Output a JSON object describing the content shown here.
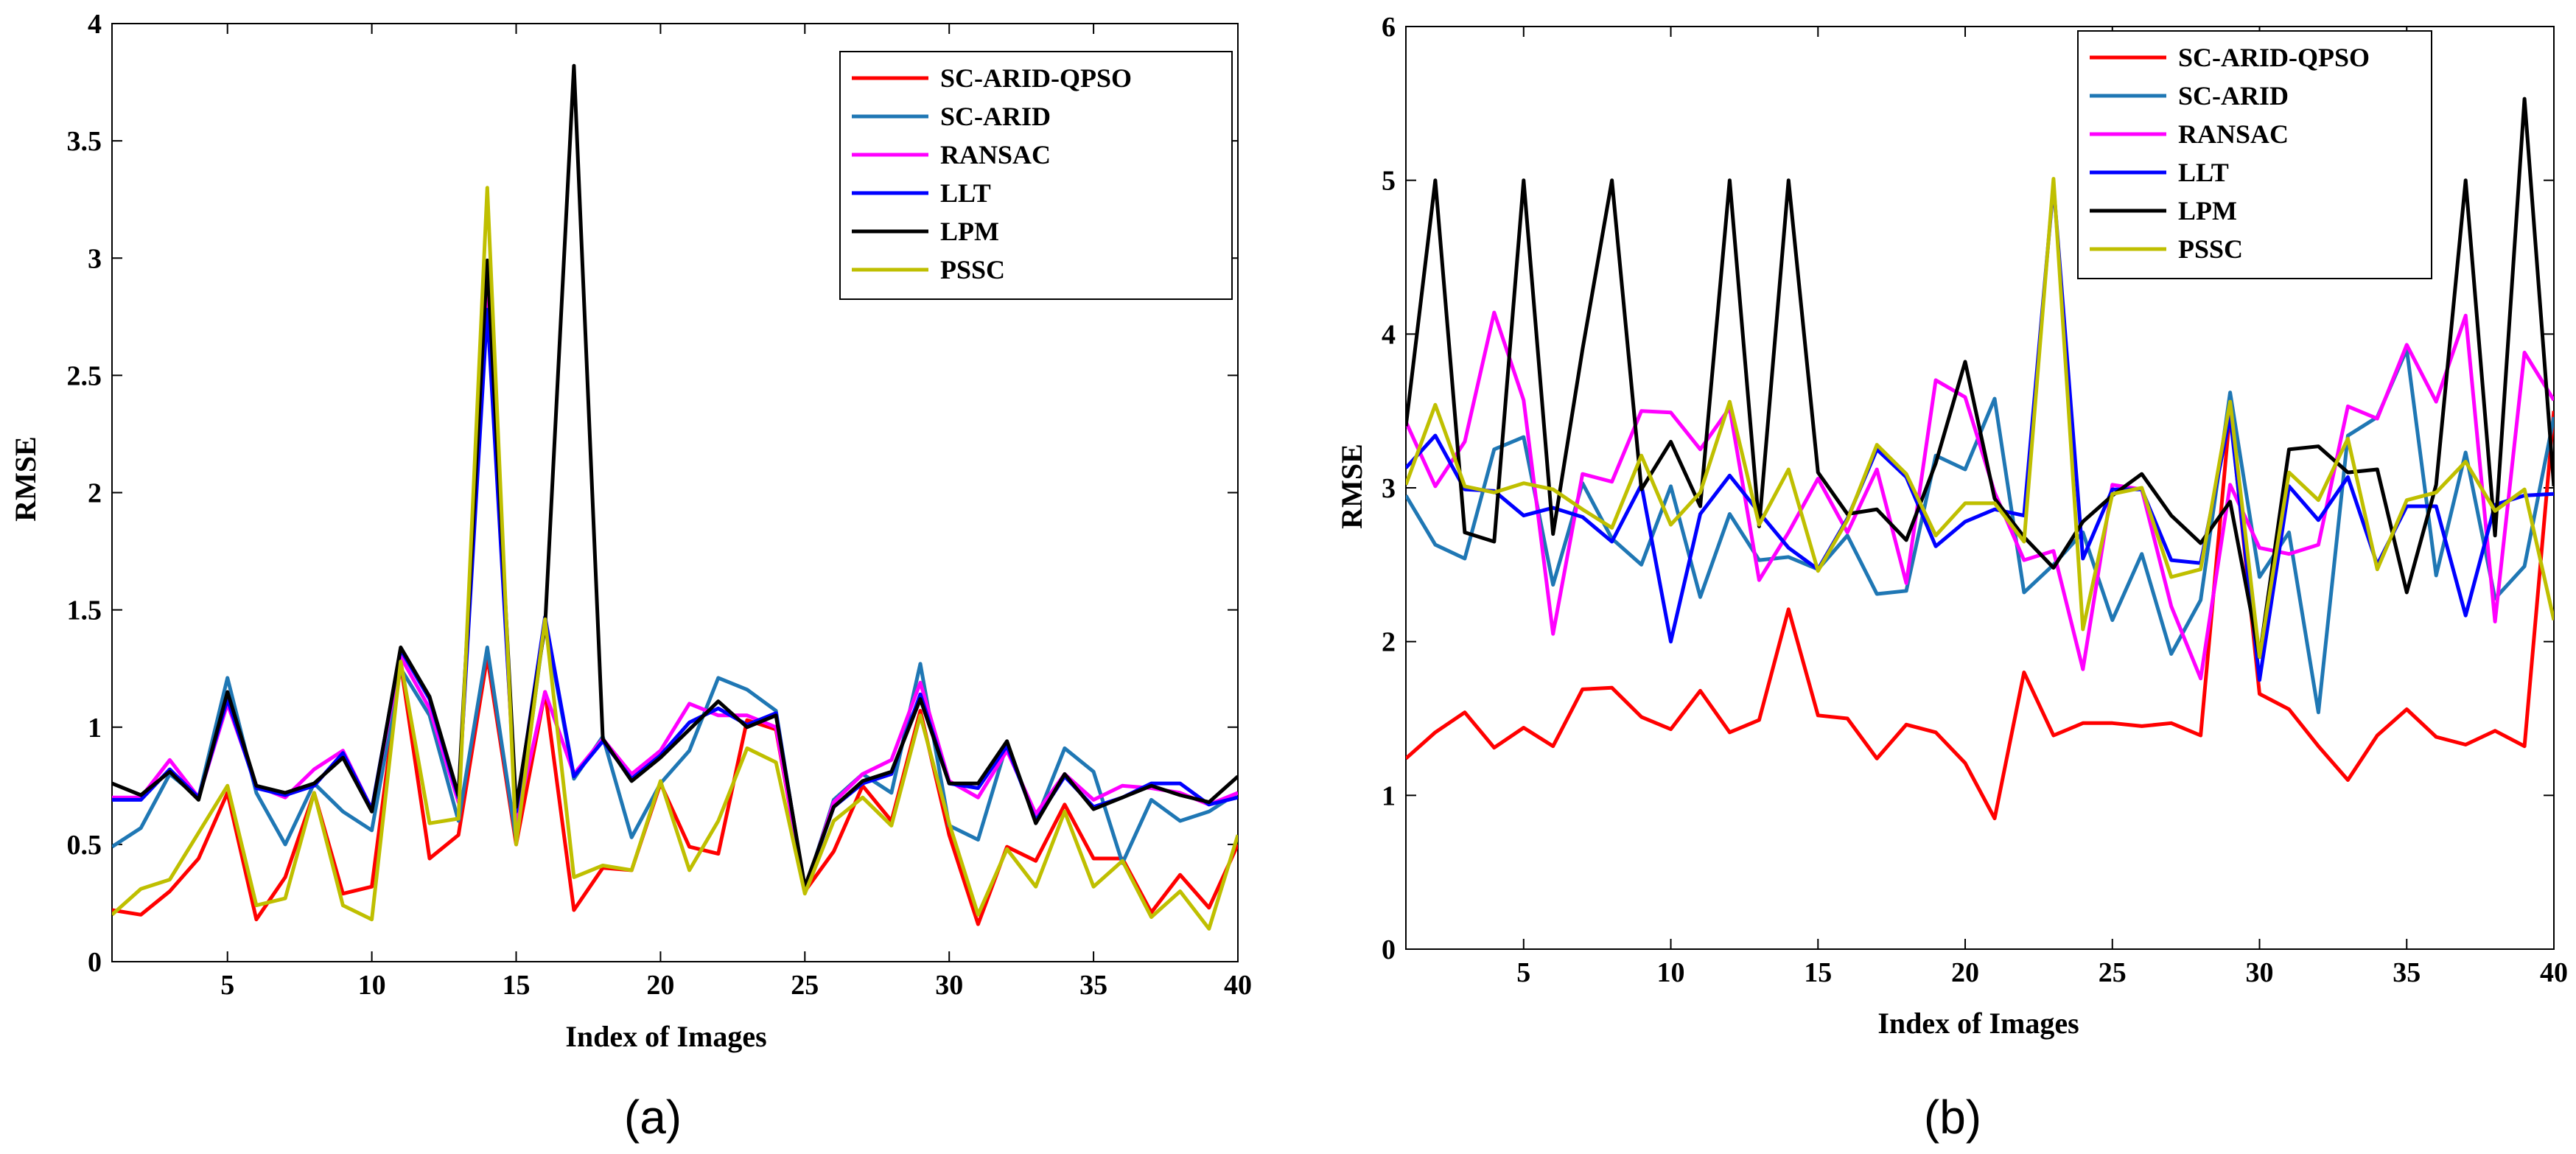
{
  "chart_data": [
    {
      "type": "line",
      "panel_label": "(a)",
      "xlabel": "Index of Images",
      "ylabel": "RMSE",
      "xlim": [
        1,
        40
      ],
      "ylim": [
        0,
        4
      ],
      "xticks": [
        5,
        10,
        15,
        20,
        25,
        30,
        35,
        40
      ],
      "yticks": [
        0,
        0.5,
        1,
        1.5,
        2,
        2.5,
        3,
        3.5,
        4
      ],
      "ytick_labels": [
        "0",
        "0.5",
        "1",
        "1.5",
        "2",
        "2.5",
        "3",
        "3.5",
        "4"
      ],
      "legend_position": "top-right",
      "x": [
        1,
        2,
        3,
        4,
        5,
        6,
        7,
        8,
        9,
        10,
        11,
        12,
        13,
        14,
        15,
        16,
        17,
        18,
        19,
        20,
        21,
        22,
        23,
        24,
        25,
        26,
        27,
        28,
        29,
        30,
        31,
        32,
        33,
        34,
        35,
        36,
        37,
        38,
        39,
        40
      ],
      "series": [
        {
          "name": "SC-ARID-QPSO",
          "color": "#ff0000",
          "values": [
            0.22,
            0.2,
            0.3,
            0.44,
            0.72,
            0.18,
            0.36,
            0.72,
            0.29,
            0.32,
            1.27,
            0.44,
            0.54,
            1.3,
            0.5,
            1.15,
            0.22,
            0.4,
            0.39,
            0.76,
            0.49,
            0.46,
            1.03,
            0.99,
            0.3,
            0.47,
            0.75,
            0.6,
            1.07,
            0.54,
            0.16,
            0.49,
            0.43,
            0.67,
            0.44,
            0.44,
            0.21,
            0.37,
            0.23,
            0.5
          ]
        },
        {
          "name": "SC-ARID",
          "color": "#1f77b4",
          "values": [
            0.49,
            0.57,
            0.8,
            0.7,
            1.21,
            0.72,
            0.5,
            0.76,
            0.64,
            0.56,
            1.25,
            1.05,
            0.6,
            1.34,
            0.52,
            1.45,
            0.78,
            0.96,
            0.53,
            0.76,
            0.9,
            1.21,
            1.16,
            1.07,
            0.3,
            0.69,
            0.8,
            0.72,
            1.27,
            0.58,
            0.52,
            0.93,
            0.6,
            0.91,
            0.81,
            0.42,
            0.69,
            0.6,
            0.64,
            0.72
          ]
        },
        {
          "name": "RANSAC",
          "color": "#ff00ff",
          "values": [
            0.7,
            0.7,
            0.86,
            0.7,
            1.1,
            0.75,
            0.7,
            0.82,
            0.9,
            0.65,
            1.3,
            1.08,
            0.68,
            2.9,
            0.6,
            1.15,
            0.8,
            0.95,
            0.8,
            0.9,
            1.1,
            1.05,
            1.05,
            1.0,
            0.3,
            0.68,
            0.8,
            0.86,
            1.19,
            0.77,
            0.7,
            0.9,
            0.63,
            0.8,
            0.69,
            0.75,
            0.74,
            0.72,
            0.67,
            0.72
          ]
        },
        {
          "name": "LLT",
          "color": "#0000ff",
          "values": [
            0.69,
            0.69,
            0.82,
            0.7,
            1.12,
            0.74,
            0.71,
            0.75,
            0.89,
            0.65,
            1.33,
            1.12,
            0.7,
            2.78,
            0.64,
            1.47,
            0.79,
            0.94,
            0.78,
            0.88,
            1.02,
            1.08,
            1.01,
            1.06,
            0.31,
            0.66,
            0.76,
            0.8,
            1.14,
            0.76,
            0.74,
            0.92,
            0.6,
            0.79,
            0.66,
            0.7,
            0.76,
            0.76,
            0.67,
            0.7
          ]
        },
        {
          "name": "LPM",
          "color": "#000000",
          "values": [
            0.76,
            0.71,
            0.81,
            0.69,
            1.15,
            0.75,
            0.72,
            0.76,
            0.87,
            0.64,
            1.34,
            1.13,
            0.71,
            2.99,
            0.66,
            1.43,
            3.82,
            0.95,
            0.77,
            0.87,
            0.99,
            1.11,
            1.0,
            1.05,
            0.32,
            0.66,
            0.77,
            0.81,
            1.12,
            0.76,
            0.76,
            0.94,
            0.59,
            0.8,
            0.65,
            0.7,
            0.75,
            0.71,
            0.68,
            0.79
          ]
        },
        {
          "name": "PSSC",
          "color": "#bfbf00",
          "values": [
            0.2,
            0.31,
            0.35,
            0.55,
            0.75,
            0.24,
            0.27,
            0.72,
            0.24,
            0.18,
            1.28,
            0.59,
            0.61,
            3.3,
            0.5,
            1.46,
            0.36,
            0.41,
            0.39,
            0.77,
            0.39,
            0.6,
            0.91,
            0.85,
            0.29,
            0.6,
            0.7,
            0.58,
            1.05,
            0.59,
            0.2,
            0.48,
            0.32,
            0.64,
            0.32,
            0.43,
            0.19,
            0.3,
            0.14,
            0.54
          ]
        }
      ]
    },
    {
      "type": "line",
      "panel_label": "(b)",
      "xlabel": "Index of Images",
      "ylabel": "RMSE",
      "xlim": [
        1,
        40
      ],
      "ylim": [
        0,
        6
      ],
      "xticks": [
        5,
        10,
        15,
        20,
        25,
        30,
        35,
        40
      ],
      "yticks": [
        0,
        1,
        2,
        3,
        4,
        5,
        6
      ],
      "ytick_labels": [
        "0",
        "1",
        "2",
        "3",
        "4",
        "5",
        "6"
      ],
      "legend_position": "top-right",
      "x": [
        1,
        2,
        3,
        4,
        5,
        6,
        7,
        8,
        9,
        10,
        11,
        12,
        13,
        14,
        15,
        16,
        17,
        18,
        19,
        20,
        21,
        22,
        23,
        24,
        25,
        26,
        27,
        28,
        29,
        30,
        31,
        32,
        33,
        34,
        35,
        36,
        37,
        38,
        39,
        40
      ],
      "series": [
        {
          "name": "SC-ARID-QPSO",
          "color": "#ff0000",
          "values": [
            1.24,
            1.41,
            1.54,
            1.31,
            1.44,
            1.32,
            1.69,
            1.7,
            1.51,
            1.43,
            1.68,
            1.41,
            1.49,
            2.21,
            1.52,
            1.5,
            1.24,
            1.46,
            1.41,
            1.21,
            0.85,
            1.8,
            1.39,
            1.47,
            1.47,
            1.45,
            1.47,
            1.39,
            3.5,
            1.66,
            1.56,
            1.32,
            1.1,
            1.39,
            1.56,
            1.38,
            1.33,
            1.42,
            1.32,
            3.5
          ]
        },
        {
          "name": "SC-ARID",
          "color": "#1f77b4",
          "values": [
            2.95,
            2.63,
            2.54,
            3.25,
            3.33,
            2.37,
            3.03,
            2.67,
            2.5,
            3.01,
            2.29,
            2.83,
            2.53,
            2.55,
            2.47,
            2.69,
            2.31,
            2.33,
            3.21,
            3.12,
            3.58,
            2.32,
            2.5,
            2.71,
            2.14,
            2.57,
            1.92,
            2.27,
            3.62,
            2.42,
            2.71,
            1.54,
            3.34,
            3.46,
            3.9,
            2.43,
            3.23,
            2.28,
            2.49,
            3.46
          ]
        },
        {
          "name": "RANSAC",
          "color": "#ff00ff",
          "values": [
            3.43,
            3.01,
            3.3,
            4.14,
            3.57,
            2.05,
            3.09,
            3.04,
            3.5,
            3.49,
            3.25,
            3.52,
            2.4,
            2.71,
            3.06,
            2.71,
            3.12,
            2.38,
            3.7,
            3.59,
            2.97,
            2.53,
            2.59,
            1.82,
            3.02,
            2.99,
            2.23,
            1.76,
            3.02,
            2.61,
            2.57,
            2.63,
            3.53,
            3.45,
            3.93,
            3.56,
            4.12,
            2.13,
            3.88,
            3.57
          ]
        },
        {
          "name": "LLT",
          "color": "#0000ff",
          "values": [
            3.13,
            3.34,
            2.99,
            2.98,
            2.82,
            2.87,
            2.81,
            2.65,
            3.02,
            2.0,
            2.83,
            3.08,
            2.84,
            2.61,
            2.47,
            2.8,
            3.25,
            3.07,
            2.62,
            2.78,
            2.86,
            2.82,
            4.97,
            2.54,
            2.99,
            2.99,
            2.53,
            2.51,
            3.47,
            1.75,
            3.01,
            2.79,
            3.07,
            2.5,
            2.88,
            2.88,
            2.17,
            2.89,
            2.95,
            2.96
          ]
        },
        {
          "name": "LPM",
          "color": "#000000",
          "values": [
            3.4,
            5.0,
            2.71,
            2.65,
            5.0,
            2.7,
            3.9,
            5.0,
            2.99,
            3.3,
            2.88,
            5.0,
            2.75,
            5.0,
            3.1,
            2.83,
            2.86,
            2.66,
            3.16,
            3.82,
            2.93,
            2.68,
            2.48,
            2.78,
            2.95,
            3.09,
            2.82,
            2.64,
            2.91,
            1.9,
            3.25,
            3.27,
            3.1,
            3.12,
            2.32,
            3.02,
            5.0,
            2.69,
            5.53,
            3.01
          ]
        },
        {
          "name": "PSSC",
          "color": "#bfbf00",
          "values": [
            3.02,
            3.54,
            3.01,
            2.97,
            3.03,
            2.99,
            2.86,
            2.74,
            3.21,
            2.76,
            2.97,
            3.56,
            2.76,
            3.12,
            2.46,
            2.79,
            3.28,
            3.09,
            2.69,
            2.9,
            2.9,
            2.65,
            5.01,
            2.08,
            2.96,
            3.0,
            2.42,
            2.47,
            3.56,
            1.9,
            3.1,
            2.92,
            3.32,
            2.47,
            2.92,
            2.97,
            3.17,
            2.85,
            2.99,
            2.14
          ]
        }
      ]
    }
  ]
}
